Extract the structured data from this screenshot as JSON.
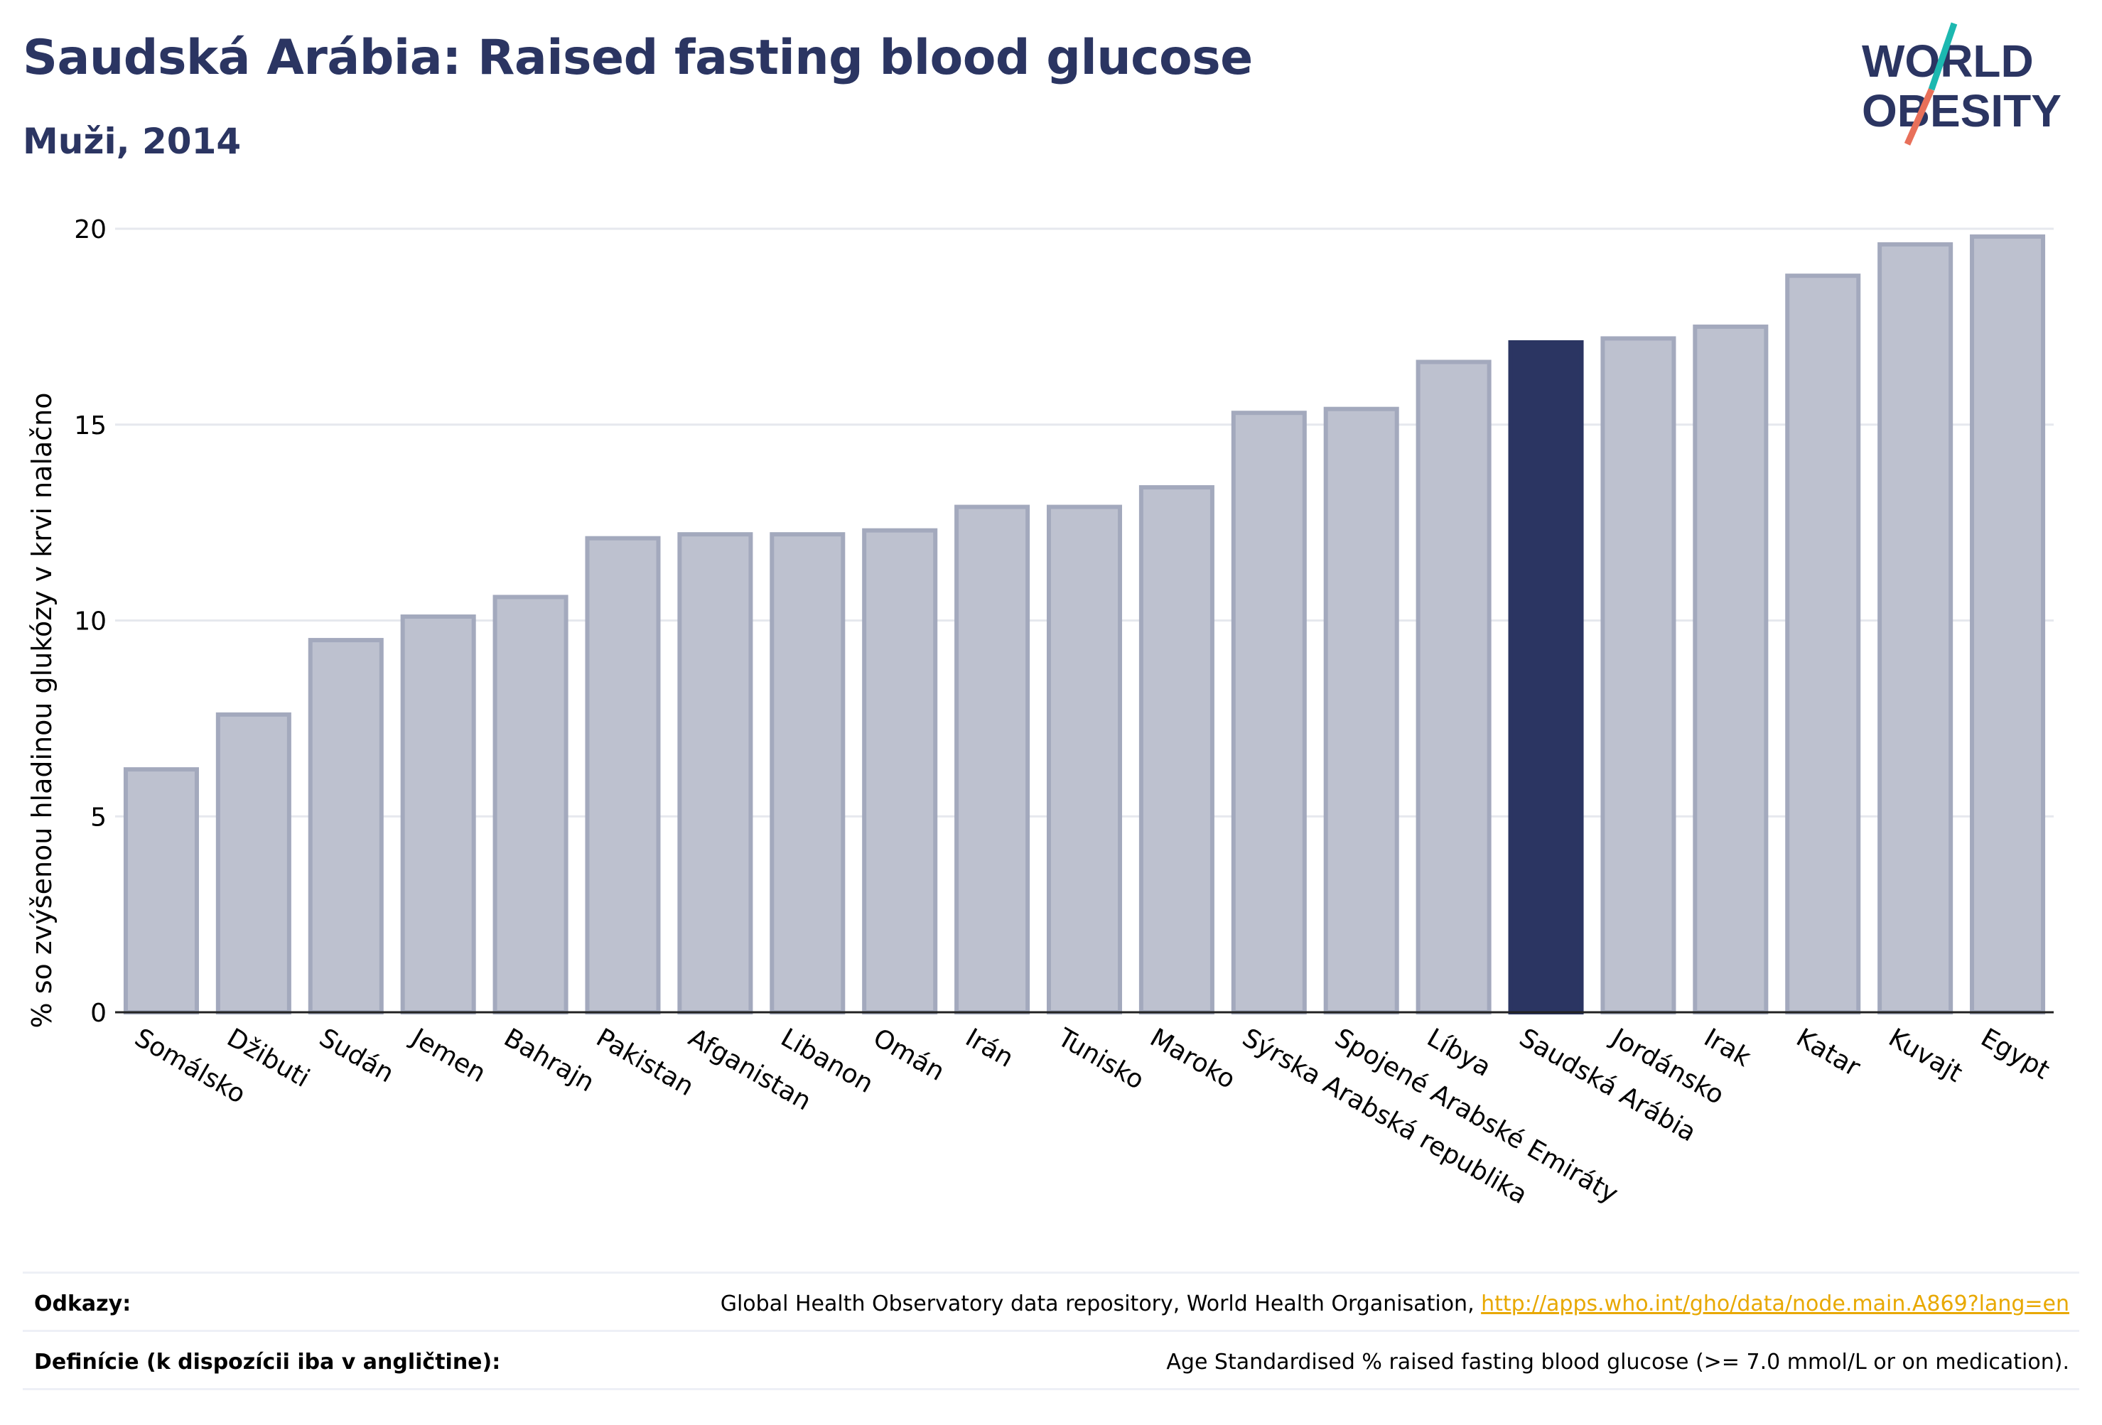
{
  "header": {
    "title": "Saudská Arábia: Raised fasting blood glucose",
    "subtitle": "Muži, 2014"
  },
  "logo": {
    "text_line1": "WORLD",
    "text_line2": "OBESITY",
    "colors": [
      "#2b3562",
      "#1cb8b0",
      "#e8705a"
    ]
  },
  "footer": {
    "sources_label": "Odkazy:",
    "sources_text": "Global Health Observatory data repository, World Health Organisation, ",
    "sources_link": "http://apps.who.int/gho/data/node.main.A869?lang=en",
    "definition_label": "Definície (k dispozícii iba v angličtine):",
    "definition_text": "Age Standardised % raised fasting blood glucose (>= 7.0 mmol/L or on medication)."
  },
  "colors": {
    "bar": "#bdc1cf",
    "bar_border": "#a3a9bd",
    "highlight": "#2b3562",
    "grid": "#e6e8ee",
    "title": "#2b3562"
  },
  "chart_data": {
    "type": "bar",
    "ylabel": "% so zvýšenou hladinou glukózy v krvi nalačno",
    "ylim": [
      0,
      20
    ],
    "yticks": [
      0,
      5,
      10,
      15,
      20
    ],
    "grid": true,
    "highlight": "Saudská Arábia",
    "categories": [
      "Somálsko",
      "Džibuti",
      "Sudán",
      "Jemen",
      "Bahrajn",
      "Pakistan",
      "Afganistan",
      "Libanon",
      "Omán",
      "Irán",
      "Tunisko",
      "Maroko",
      "Sýrska Arabská republika",
      "Spojené Arabské Emiráty",
      "Líbya",
      "Saudská Arábia",
      "Jordánsko",
      "Irak",
      "Katar",
      "Kuvajt",
      "Egypt"
    ],
    "values": [
      6.2,
      7.6,
      9.5,
      10.1,
      10.6,
      12.1,
      12.2,
      12.2,
      12.3,
      12.9,
      12.9,
      13.4,
      15.3,
      15.4,
      16.6,
      17.1,
      17.2,
      17.5,
      18.8,
      19.6,
      19.8
    ]
  }
}
